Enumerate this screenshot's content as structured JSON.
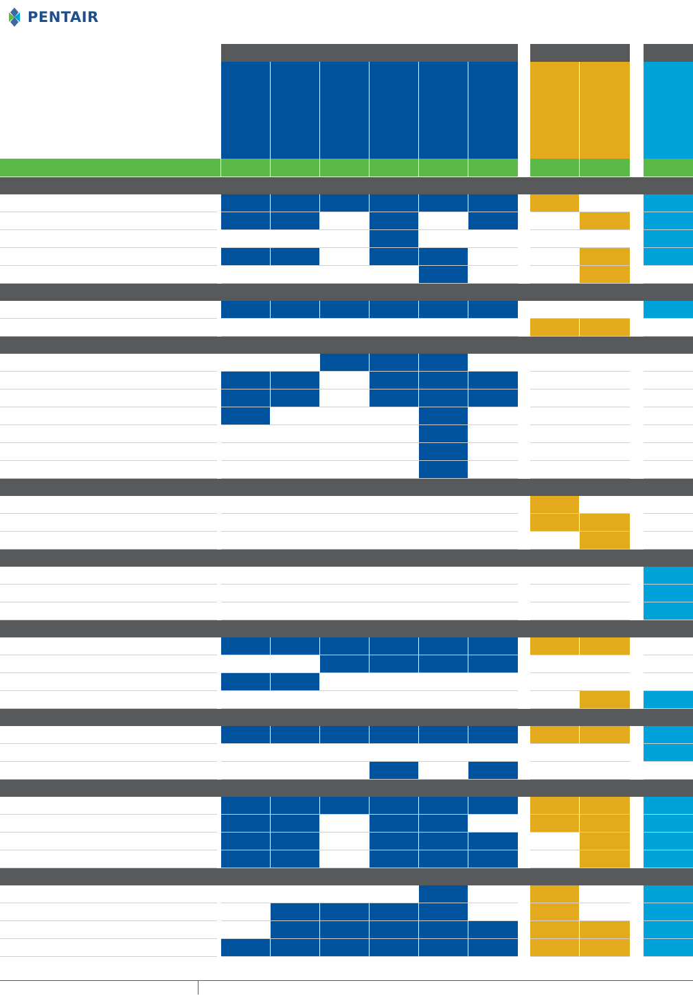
{
  "brand": {
    "name": "PENTAIR"
  },
  "colors": {
    "group_bar": "#58595b",
    "blue": "#00529c",
    "gold": "#e2aa1c",
    "cyan": "#00a3d9",
    "green": "#5ab947",
    "row_line": "#cfd0d2"
  },
  "columns": [
    {
      "key": "b1",
      "color": "blue"
    },
    {
      "key": "b2",
      "color": "blue"
    },
    {
      "key": "b3",
      "color": "blue"
    },
    {
      "key": "b4",
      "color": "blue"
    },
    {
      "key": "b5",
      "color": "blue"
    },
    {
      "key": "b6",
      "color": "blue"
    },
    {
      "key": "g1",
      "color": "gold"
    },
    {
      "key": "g2",
      "color": "gold"
    },
    {
      "key": "c1",
      "color": "cyan"
    }
  ],
  "sections": [
    {
      "rows": [
        [
          1,
          1,
          1,
          1,
          1,
          1,
          1,
          0,
          1
        ],
        [
          1,
          1,
          0,
          1,
          0,
          1,
          0,
          1,
          1
        ],
        [
          0,
          0,
          0,
          1,
          0,
          0,
          0,
          0,
          1
        ],
        [
          1,
          1,
          0,
          1,
          1,
          0,
          0,
          1,
          1
        ],
        [
          0,
          0,
          0,
          0,
          1,
          0,
          0,
          1,
          0
        ]
      ]
    },
    {
      "rows": [
        [
          1,
          1,
          1,
          1,
          1,
          1,
          0,
          0,
          1
        ],
        [
          0,
          0,
          0,
          0,
          0,
          0,
          1,
          1,
          0
        ]
      ]
    },
    {
      "rows": [
        [
          0,
          0,
          1,
          1,
          1,
          0,
          0,
          0,
          0
        ],
        [
          1,
          1,
          0,
          1,
          1,
          1,
          0,
          0,
          0
        ],
        [
          1,
          1,
          0,
          1,
          1,
          1,
          0,
          0,
          0
        ],
        [
          1,
          0,
          0,
          0,
          1,
          0,
          0,
          0,
          0
        ],
        [
          0,
          0,
          0,
          0,
          1,
          0,
          0,
          0,
          0
        ],
        [
          0,
          0,
          0,
          0,
          1,
          0,
          0,
          0,
          0
        ],
        [
          0,
          0,
          0,
          0,
          1,
          0,
          0,
          0,
          0
        ]
      ]
    },
    {
      "rows": [
        [
          0,
          0,
          0,
          0,
          0,
          0,
          1,
          0,
          0
        ],
        [
          0,
          0,
          0,
          0,
          0,
          0,
          1,
          1,
          0
        ],
        [
          0,
          0,
          0,
          0,
          0,
          0,
          0,
          1,
          0
        ]
      ]
    },
    {
      "rows": [
        [
          0,
          0,
          0,
          0,
          0,
          0,
          0,
          0,
          1
        ],
        [
          0,
          0,
          0,
          0,
          0,
          0,
          0,
          0,
          1
        ],
        [
          0,
          0,
          0,
          0,
          0,
          0,
          0,
          0,
          1
        ]
      ]
    },
    {
      "rows": [
        [
          1,
          1,
          1,
          1,
          1,
          1,
          1,
          1,
          0
        ],
        [
          0,
          0,
          1,
          1,
          1,
          1,
          0,
          0,
          0
        ],
        [
          1,
          1,
          0,
          0,
          0,
          0,
          0,
          0,
          0
        ],
        [
          0,
          0,
          0,
          0,
          0,
          0,
          0,
          1,
          1
        ]
      ]
    },
    {
      "rows": [
        [
          1,
          1,
          1,
          1,
          1,
          1,
          1,
          1,
          1
        ],
        [
          0,
          0,
          0,
          0,
          0,
          0,
          0,
          0,
          1
        ],
        [
          0,
          0,
          0,
          1,
          0,
          1,
          0,
          0,
          0
        ]
      ]
    },
    {
      "rows": [
        [
          1,
          1,
          1,
          1,
          1,
          1,
          1,
          1,
          1
        ],
        [
          1,
          1,
          0,
          1,
          1,
          0,
          1,
          1,
          1
        ],
        [
          1,
          1,
          0,
          1,
          1,
          1,
          0,
          1,
          1
        ],
        [
          1,
          1,
          0,
          1,
          1,
          1,
          0,
          1,
          1
        ]
      ]
    },
    {
      "rows": [
        [
          0,
          0,
          0,
          0,
          1,
          0,
          1,
          0,
          1
        ],
        [
          0,
          1,
          1,
          1,
          1,
          0,
          1,
          0,
          1
        ],
        [
          0,
          1,
          1,
          1,
          1,
          1,
          1,
          1,
          1
        ],
        [
          1,
          1,
          1,
          1,
          1,
          1,
          1,
          1,
          1
        ]
      ]
    }
  ]
}
